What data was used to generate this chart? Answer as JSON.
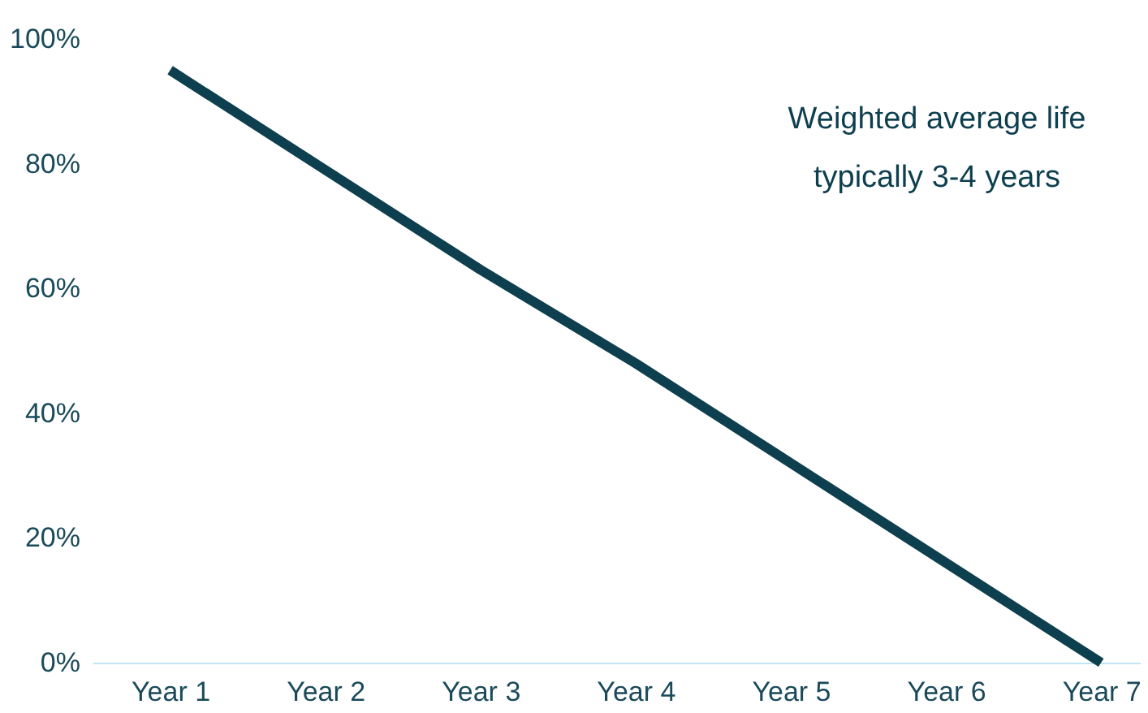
{
  "chart_data": {
    "type": "line",
    "categories": [
      "Year 1",
      "Year 2",
      "Year 3",
      "Year 4",
      "Year 5",
      "Year 6",
      "Year 7"
    ],
    "series": [
      {
        "color": "#0e3f4f",
        "values": [
          95,
          79,
          63,
          48,
          32,
          16,
          0
        ]
      }
    ],
    "ylim": [
      0,
      100
    ],
    "yticks": [
      {
        "value": 0,
        "label": "0%"
      },
      {
        "value": 20,
        "label": "20%"
      },
      {
        "value": 40,
        "label": "40%"
      },
      {
        "value": 60,
        "label": "60%"
      },
      {
        "value": 80,
        "label": "80%"
      },
      {
        "value": 100,
        "label": "100%"
      }
    ],
    "grid": false,
    "legend": false,
    "marker": "none",
    "line_style": "solid",
    "annotations": [
      "Weighted average life\ntypically 3-4 years"
    ]
  }
}
